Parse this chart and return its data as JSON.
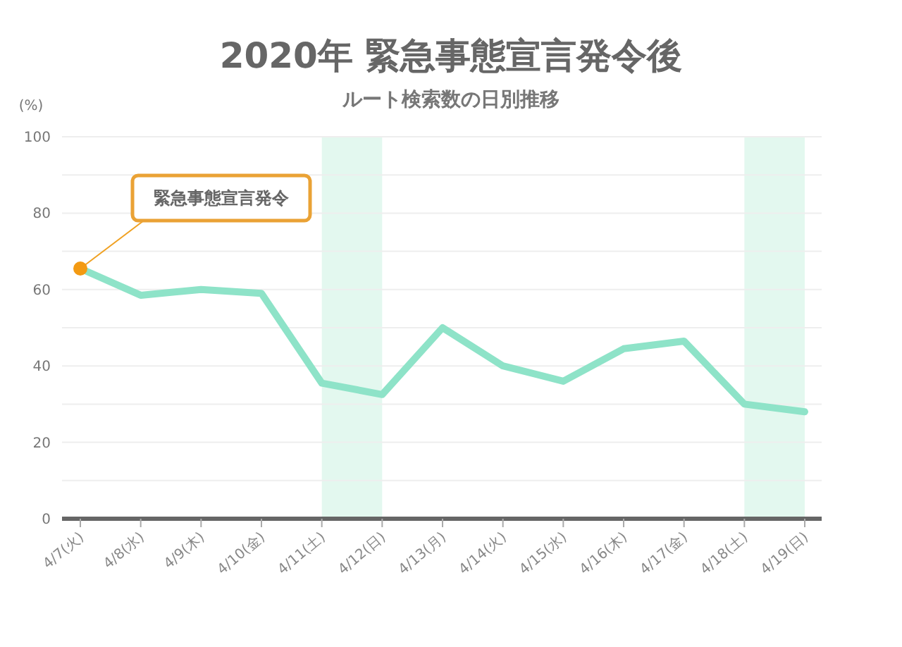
{
  "chart_data": {
    "type": "line",
    "title": "2020年 緊急事態宣言発令後",
    "subtitle": "ルート検索数の日別推移",
    "ylabel": "(%)",
    "categories": [
      "4/7(火)",
      "4/8(水)",
      "4/9(木)",
      "4/10(金)",
      "4/11(土)",
      "4/12(日)",
      "4/13(月)",
      "4/14(火)",
      "4/15(水)",
      "4/16(木)",
      "4/17(金)",
      "4/18(土)",
      "4/19(日)"
    ],
    "series": [
      {
        "color": "#8ee3c8",
        "values": [
          65.5,
          58.5,
          60,
          59,
          35.5,
          32.5,
          50,
          40,
          36,
          44.5,
          46.5,
          30,
          28
        ]
      }
    ],
    "ylim": [
      0,
      100
    ],
    "yticks": [
      0,
      {
        "value": 10,
        "label": null
      },
      20,
      {
        "value": 30,
        "label": null
      },
      40,
      {
        "value": 50,
        "label": null
      },
      60,
      {
        "value": 70,
        "label": null
      },
      80,
      {
        "value": 90,
        "label": null
      },
      100
    ],
    "grid": "y",
    "marker": "none",
    "line_style": "solid",
    "bands": [
      {
        "axis": "x",
        "from": "4/11(土)",
        "to": "4/12(日)",
        "color": "#e3f8ef"
      },
      {
        "axis": "x",
        "from": "4/18(土)",
        "to": "4/19(日)",
        "color": "#e3f8ef"
      }
    ],
    "annotations": [
      {
        "text": "緊急事態宣言発令",
        "x": "4/7(火)",
        "y": 65.5
      }
    ]
  }
}
